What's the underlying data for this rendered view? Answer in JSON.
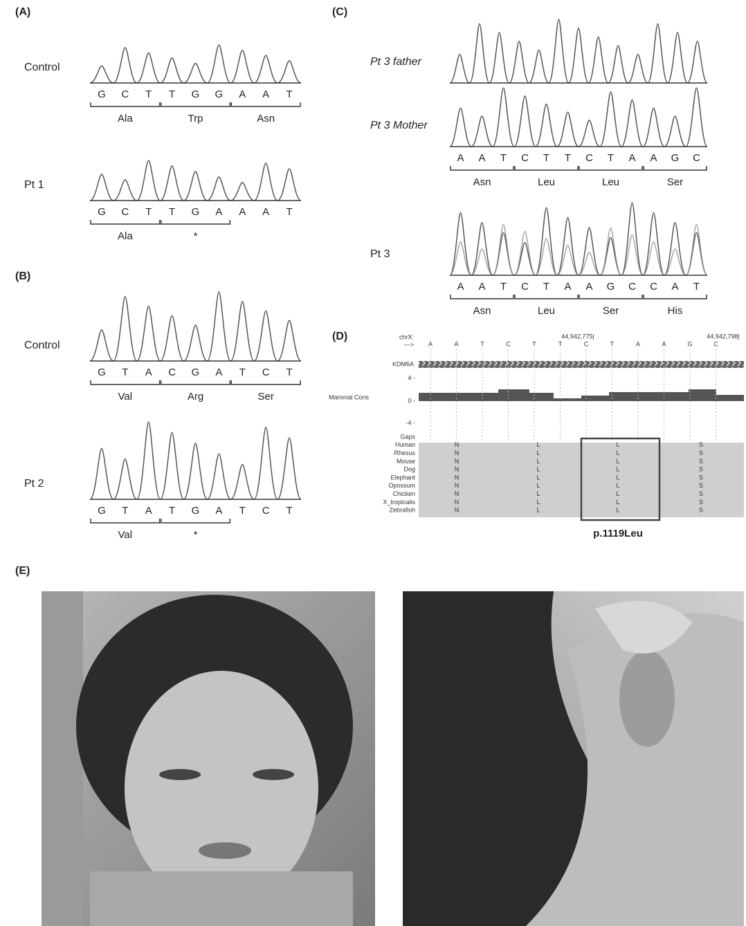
{
  "panel_A": {
    "label": "(A)",
    "rows": [
      {
        "name": "Control",
        "bases": [
          "G",
          "C",
          "T",
          "T",
          "G",
          "G",
          "A",
          "A",
          "T"
        ],
        "codons": [
          "Ala",
          "Trp",
          "Asn"
        ]
      },
      {
        "name": "Pt 1",
        "bases": [
          "G",
          "C",
          "T",
          "T",
          "G",
          "A",
          "A",
          "A",
          "T"
        ],
        "codons": [
          "Ala",
          "*"
        ]
      }
    ]
  },
  "panel_B": {
    "label": "(B)",
    "rows": [
      {
        "name": "Control",
        "bases": [
          "G",
          "T",
          "A",
          "C",
          "G",
          "A",
          "T",
          "C",
          "T"
        ],
        "codons": [
          "Val",
          "Arg",
          "Ser"
        ]
      },
      {
        "name": "Pt 2",
        "bases": [
          "G",
          "T",
          "A",
          "T",
          "G",
          "A",
          "T",
          "C",
          "T"
        ],
        "codons": [
          "Val",
          "*"
        ]
      }
    ]
  },
  "panel_C": {
    "label": "(C)",
    "rows": [
      {
        "name": "Pt 3 father"
      },
      {
        "name": "Pt 3 Mother",
        "bases": [
          "A",
          "A",
          "T",
          "C",
          "T",
          "T",
          "C",
          "T",
          "A",
          "A",
          "G",
          "C"
        ],
        "codons": [
          "Asn",
          "Leu",
          "Leu",
          "Ser"
        ]
      },
      {
        "name": "Pt 3",
        "bases": [
          "A",
          "A",
          "T",
          "C",
          "T",
          "A",
          "A",
          "G",
          "C",
          "C",
          "A",
          "T"
        ],
        "codons": [
          "Asn",
          "Leu",
          "Ser",
          "His"
        ]
      }
    ]
  },
  "panel_D": {
    "label": "(D)",
    "position_label": "chrX:",
    "strand": "--->",
    "coord_left": "44,942,775|",
    "coord_right": "44,942,798|",
    "bases": [
      "A",
      "A",
      "T",
      "C",
      "T",
      "T",
      "C",
      "T",
      "A",
      "A",
      "G",
      "C"
    ],
    "gene": "KDM6A",
    "track": "Mammal Cons",
    "track_ticks": [
      "4 -",
      "0 -",
      "-4 -"
    ],
    "species": [
      "Gaps",
      "Human",
      "Rhesus",
      "Mouse",
      "Dog",
      "Elephant",
      "Opossum",
      "Chicken",
      "X_tropicalis",
      "Zebrafish"
    ],
    "residues": [
      "N",
      "L",
      "L",
      "S"
    ],
    "highlight": "p.1119Leu"
  },
  "panel_E": {
    "label": "(E)"
  }
}
